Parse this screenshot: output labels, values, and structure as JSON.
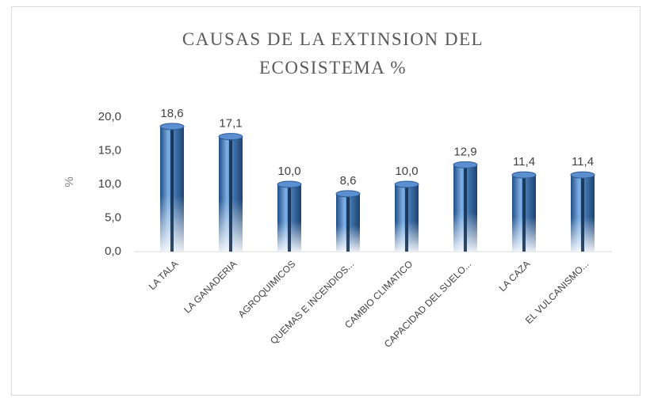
{
  "chart_data": {
    "type": "bar",
    "title": "CAUSAS DE LA EXTINSION DEL ECOSISTEMA %",
    "y_label": "%",
    "categories": [
      "LA TALA",
      "LA GANADERIA",
      "AGROQUIMICOS",
      "QUEMAS E INCENDIOS...",
      "CAMBIO CLIMATICO",
      "CAPACIDAD DEL SUELO...",
      "LA CAZA",
      "EL VULCANISMO..."
    ],
    "values": [
      18.6,
      17.1,
      10.0,
      8.6,
      10.0,
      12.9,
      11.4,
      11.4
    ],
    "value_labels": [
      "18,6",
      "17,1",
      "10,0",
      "8,6",
      "10,0",
      "12,9",
      "11,4",
      "11,4"
    ],
    "color": "#4a7ebb",
    "ylim": [
      0,
      20
    ],
    "yticks": [
      {
        "value": 0,
        "label": "0,0"
      },
      {
        "value": 5,
        "label": "5,0"
      },
      {
        "value": 10,
        "label": "10,0"
      },
      {
        "value": 15,
        "label": "15,0"
      },
      {
        "value": 20,
        "label": "20,0"
      }
    ],
    "grid": false
  }
}
